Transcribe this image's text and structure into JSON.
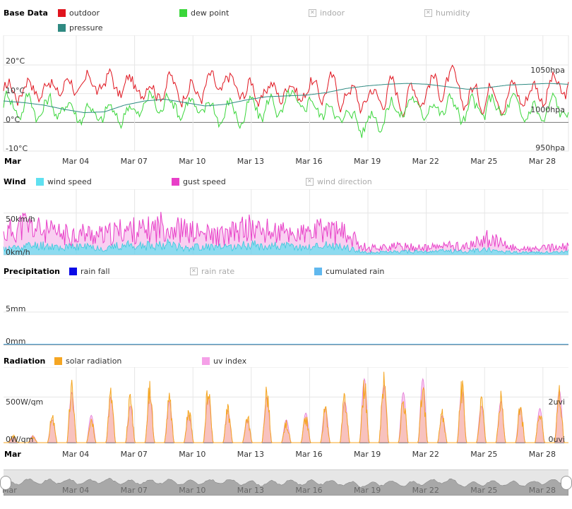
{
  "colors": {
    "outdoor": "#e0141e",
    "dew_point": "#3ad63a",
    "pressure": "#2f8a82",
    "wind_speed": "#5fe0f0",
    "gust_speed": "#e83fc8",
    "rain_fall": "#0a0ae6",
    "cumulated_rain": "#60b8ee",
    "solar": "#f5a623",
    "uv": "#f5a0e8"
  },
  "x_axis": {
    "month_label": "Mar",
    "ticks": [
      "Mar 04",
      "Mar 07",
      "Mar 10",
      "Mar 13",
      "Mar 16",
      "Mar 19",
      "Mar 22",
      "Mar 25",
      "Mar 28"
    ]
  },
  "panels": {
    "base": {
      "title": "Base Data",
      "legend": [
        {
          "label": "outdoor",
          "state": "on",
          "color_key": "outdoor"
        },
        {
          "label": "dew point",
          "state": "on",
          "color_key": "dew_point"
        },
        {
          "label": "indoor",
          "state": "off"
        },
        {
          "label": "humidity",
          "state": "off"
        },
        {
          "label": "pressure",
          "state": "on",
          "color_key": "pressure"
        }
      ],
      "y_left": [
        "20°C",
        "10°C",
        "0°C",
        "-10°C"
      ],
      "y_right": [
        "1050hpa",
        "1000hpa",
        "950hpa"
      ]
    },
    "wind": {
      "title": "Wind",
      "legend": [
        {
          "label": "wind speed",
          "state": "on",
          "color_key": "wind_speed"
        },
        {
          "label": "gust speed",
          "state": "on",
          "color_key": "gust_speed"
        },
        {
          "label": "wind direction",
          "state": "off"
        }
      ],
      "y_left": [
        "50km/h",
        "0km/h"
      ]
    },
    "precip": {
      "title": "Precipitation",
      "legend": [
        {
          "label": "rain fall",
          "state": "on",
          "color_key": "rain_fall"
        },
        {
          "label": "rain rate",
          "state": "off"
        },
        {
          "label": "cumulated rain",
          "state": "on",
          "color_key": "cumulated_rain"
        }
      ],
      "y_left": [
        "5mm",
        "0mm"
      ]
    },
    "radiation": {
      "title": "Radiation",
      "legend": [
        {
          "label": "solar radiation",
          "state": "on",
          "color_key": "solar"
        },
        {
          "label": "uv index",
          "state": "on",
          "color_key": "uv"
        }
      ],
      "y_left": [
        "500W/qm",
        "0W/qm"
      ],
      "y_right": [
        "2uvi",
        "0uvi"
      ]
    }
  },
  "chart_data": [
    {
      "type": "line",
      "x": [
        "Mar 01",
        "Mar 02",
        "Mar 03",
        "Mar 04",
        "Mar 05",
        "Mar 06",
        "Mar 07",
        "Mar 08",
        "Mar 09",
        "Mar 10",
        "Mar 11",
        "Mar 12",
        "Mar 13",
        "Mar 14",
        "Mar 15",
        "Mar 16",
        "Mar 17",
        "Mar 18",
        "Mar 19",
        "Mar 20",
        "Mar 21",
        "Mar 22",
        "Mar 23",
        "Mar 24",
        "Mar 25",
        "Mar 26",
        "Mar 27",
        "Mar 28",
        "Mar 29"
      ],
      "ylim": [
        -10,
        20
      ],
      "y2lim": [
        950,
        1050
      ],
      "series": [
        {
          "name": "outdoor",
          "values": [
            9,
            13,
            12,
            13,
            12,
            14,
            12,
            12,
            13,
            11,
            12,
            13,
            11,
            10,
            12,
            11,
            12,
            10,
            8,
            11,
            9,
            12,
            14,
            8,
            11,
            10,
            10,
            12,
            12
          ]
        },
        {
          "name": "dew point",
          "values": [
            7,
            6,
            5,
            5,
            4,
            2,
            3,
            6,
            7,
            6,
            4,
            4,
            3,
            5,
            6,
            6,
            5,
            2,
            0,
            4,
            6,
            5,
            6,
            3,
            5,
            5,
            3,
            4,
            6
          ]
        },
        {
          "name": "pressure",
          "values": [
            1010,
            1008,
            1005,
            1000,
            996,
            997,
            1005,
            1010,
            1012,
            1008,
            1004,
            1006,
            1011,
            1015,
            1016,
            1017,
            1020,
            1025,
            1028,
            1030,
            1031,
            1030,
            1027,
            1024,
            1026,
            1029,
            1030,
            1031,
            1030
          ]
        }
      ]
    },
    {
      "type": "area",
      "x": [
        "Mar 01",
        "Mar 02",
        "Mar 03",
        "Mar 04",
        "Mar 05",
        "Mar 06",
        "Mar 07",
        "Mar 08",
        "Mar 09",
        "Mar 10",
        "Mar 11",
        "Mar 12",
        "Mar 13",
        "Mar 14",
        "Mar 15",
        "Mar 16",
        "Mar 17",
        "Mar 18",
        "Mar 19",
        "Mar 20",
        "Mar 21",
        "Mar 22",
        "Mar 23",
        "Mar 24",
        "Mar 25",
        "Mar 26",
        "Mar 27",
        "Mar 28",
        "Mar 29"
      ],
      "ylim": [
        0,
        70
      ],
      "series": [
        {
          "name": "wind speed",
          "values": [
            8,
            12,
            14,
            10,
            12,
            9,
            14,
            12,
            16,
            10,
            12,
            10,
            14,
            13,
            12,
            10,
            14,
            10,
            3,
            4,
            5,
            4,
            6,
            5,
            8,
            4,
            3,
            4,
            5
          ]
        },
        {
          "name": "gust speed",
          "values": [
            30,
            45,
            35,
            30,
            32,
            28,
            38,
            35,
            45,
            35,
            30,
            28,
            40,
            35,
            32,
            30,
            38,
            30,
            10,
            12,
            12,
            10,
            14,
            12,
            25,
            12,
            8,
            10,
            12
          ]
        }
      ]
    },
    {
      "type": "line",
      "x": [
        "Mar 01",
        "Mar 29"
      ],
      "ylim": [
        0,
        10
      ],
      "series": [
        {
          "name": "rain fall",
          "values": [
            0,
            0
          ]
        },
        {
          "name": "cumulated rain",
          "values": [
            0,
            0
          ]
        }
      ]
    },
    {
      "type": "area",
      "x": [
        "Mar 01",
        "Mar 02",
        "Mar 03",
        "Mar 04",
        "Mar 05",
        "Mar 06",
        "Mar 07",
        "Mar 08",
        "Mar 09",
        "Mar 10",
        "Mar 11",
        "Mar 12",
        "Mar 13",
        "Mar 14",
        "Mar 15",
        "Mar 16",
        "Mar 17",
        "Mar 18",
        "Mar 19",
        "Mar 20",
        "Mar 21",
        "Mar 22",
        "Mar 23",
        "Mar 24",
        "Mar 25",
        "Mar 26",
        "Mar 27",
        "Mar 28",
        "Mar 29"
      ],
      "ylim": [
        0,
        750
      ],
      "y2lim": [
        0,
        3
      ],
      "series": [
        {
          "name": "solar radiation",
          "values": [
            80,
            70,
            300,
            650,
            320,
            600,
            550,
            650,
            520,
            400,
            700,
            400,
            320,
            630,
            240,
            300,
            400,
            550,
            700,
            750,
            550,
            650,
            350,
            650,
            480,
            550,
            400,
            420,
            650
          ]
        },
        {
          "name": "uv index",
          "values": [
            0.2,
            0.3,
            1.0,
            2.2,
            1.2,
            2.0,
            1.6,
            2.0,
            1.8,
            1.2,
            2.0,
            1.4,
            1.0,
            2.0,
            1.0,
            1.3,
            1.5,
            1.8,
            2.8,
            2.5,
            2.2,
            2.8,
            1.2,
            2.3,
            1.6,
            1.8,
            1.5,
            1.5,
            2.3
          ]
        }
      ]
    }
  ]
}
